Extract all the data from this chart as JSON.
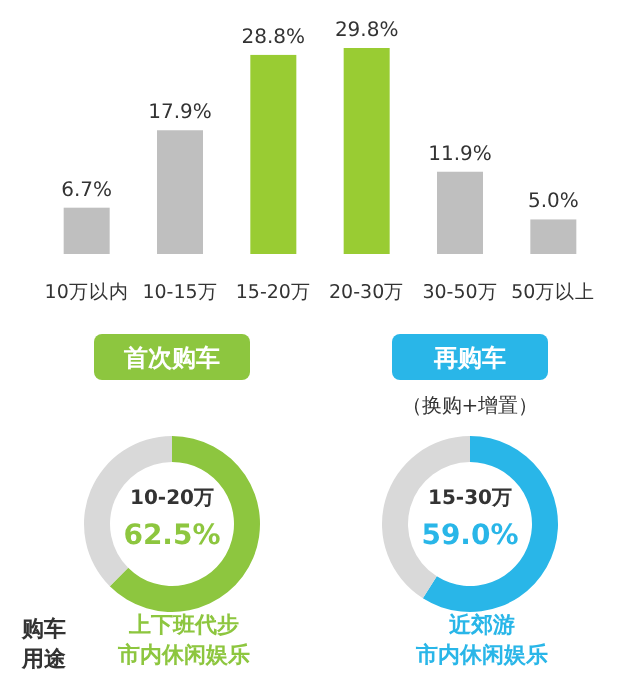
{
  "chart_data": [
    {
      "type": "bar",
      "categories": [
        "10万以内",
        "10-15万",
        "15-20万",
        "20-30万",
        "30-50万",
        "50万以上"
      ],
      "values": [
        6.7,
        17.9,
        28.8,
        29.8,
        11.9,
        5.0
      ],
      "value_labels": [
        "6.7%",
        "17.9%",
        "28.8%",
        "29.8%",
        "11.9%",
        "5.0%"
      ],
      "colors": [
        "#bfbfbf",
        "#bfbfbf",
        "#99cc33",
        "#99cc33",
        "#bfbfbf",
        "#bfbfbf"
      ]
    },
    {
      "type": "donut",
      "title": "首次购车",
      "categories": [
        "10-20万",
        null
      ],
      "values": [
        62.5,
        37.5
      ],
      "value_labels": [
        "62.5%",
        null
      ],
      "colors": [
        "#8dc63f",
        "#d9d9d9"
      ],
      "annotations": [
        "购车用途",
        "上下班代步",
        "市内休闲娱乐"
      ]
    },
    {
      "type": "donut",
      "title": "再购车",
      "subtitle": "（换购+增置）",
      "categories": [
        "15-30万",
        null
      ],
      "values": [
        59.0,
        41.0
      ],
      "value_labels": [
        "59.0%",
        null
      ],
      "colors": [
        "#29b6e8",
        "#d9d9d9"
      ],
      "annotations": [
        "近郊游",
        "市内休闲娱乐"
      ]
    }
  ]
}
